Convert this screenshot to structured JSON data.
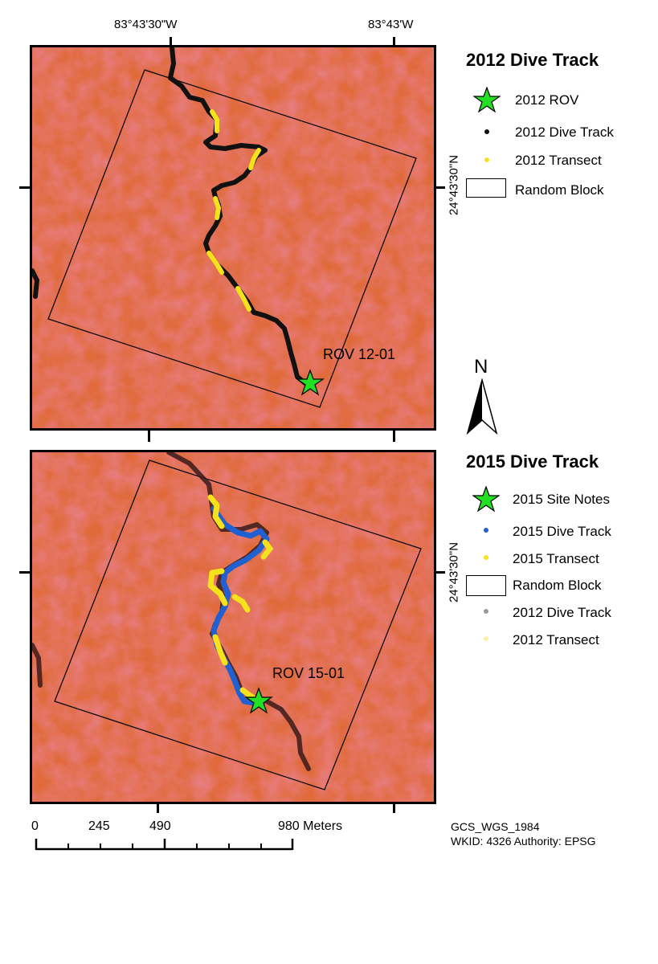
{
  "coords": {
    "top_left_lon": "83°43'30\"W",
    "top_right_lon": "83°43'W",
    "lat_top_map": "24°43'30\"N",
    "lat_bottom_map": "24°43'30\"N"
  },
  "legend_2012": {
    "title": "2012 Dive Track",
    "items": [
      {
        "label": "2012 ROV",
        "symbol": "green-star"
      },
      {
        "label": "2012 Dive Track",
        "symbol": "black-dot"
      },
      {
        "label": "2012 Transect",
        "symbol": "yellow-dot"
      },
      {
        "label": "Random Block",
        "symbol": "box"
      }
    ]
  },
  "legend_2015": {
    "title": "2015 Dive Track",
    "items": [
      {
        "label": "2015 Site Notes",
        "symbol": "green-star"
      },
      {
        "label": "2015 Dive Track",
        "symbol": "blue-dot"
      },
      {
        "label": "2015 Transect",
        "symbol": "yellow-dot"
      },
      {
        "label": "Random Block",
        "symbol": "box"
      },
      {
        "label": "2012 Dive Track",
        "symbol": "gray-dot"
      },
      {
        "label": "2012 Transect",
        "symbol": "faint-yellow-dot"
      }
    ]
  },
  "north_arrow": {
    "label": "N"
  },
  "maps": {
    "top": {
      "rov_label": "ROV 12-01"
    },
    "bottom": {
      "rov_label": "ROV 15-01"
    }
  },
  "scale_bar": {
    "labels": [
      "0",
      "245",
      "490",
      "980 Meters"
    ]
  },
  "crs": {
    "line1": "GCS_WGS_1984",
    "line2": "WKID: 4326 Authority: EPSG"
  },
  "colors": {
    "terrain_base": "#c8282e",
    "terrain_light": "#e0703a",
    "track_2012": "#111111",
    "track_2015": "#2060d0",
    "transect": "#f5e21a",
    "star": "#22e022"
  }
}
